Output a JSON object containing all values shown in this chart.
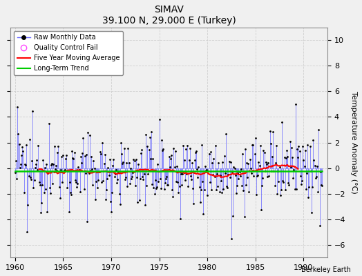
{
  "title": "SIMAV",
  "subtitle": "39.100 N, 29.000 E (Turkey)",
  "attribution": "Berkeley Earth",
  "ylabel": "Temperature Anomaly (°C)",
  "xlim": [
    1959.5,
    1992.5
  ],
  "ylim": [
    -7,
    11
  ],
  "yticks": [
    -6,
    -4,
    -2,
    0,
    2,
    4,
    6,
    8,
    10
  ],
  "xticks": [
    1960,
    1965,
    1970,
    1975,
    1980,
    1985,
    1990
  ],
  "bg_color": "#f0f0f0",
  "plot_bg_color": "#f0f0f0",
  "grid_color": "#d0d0d0",
  "raw_line_color": "#6666ff",
  "raw_dot_color": "#000000",
  "moving_avg_color": "#ff0000",
  "trend_color": "#00cc00",
  "qc_fail_color": "#ff44ff",
  "seed": 12345
}
